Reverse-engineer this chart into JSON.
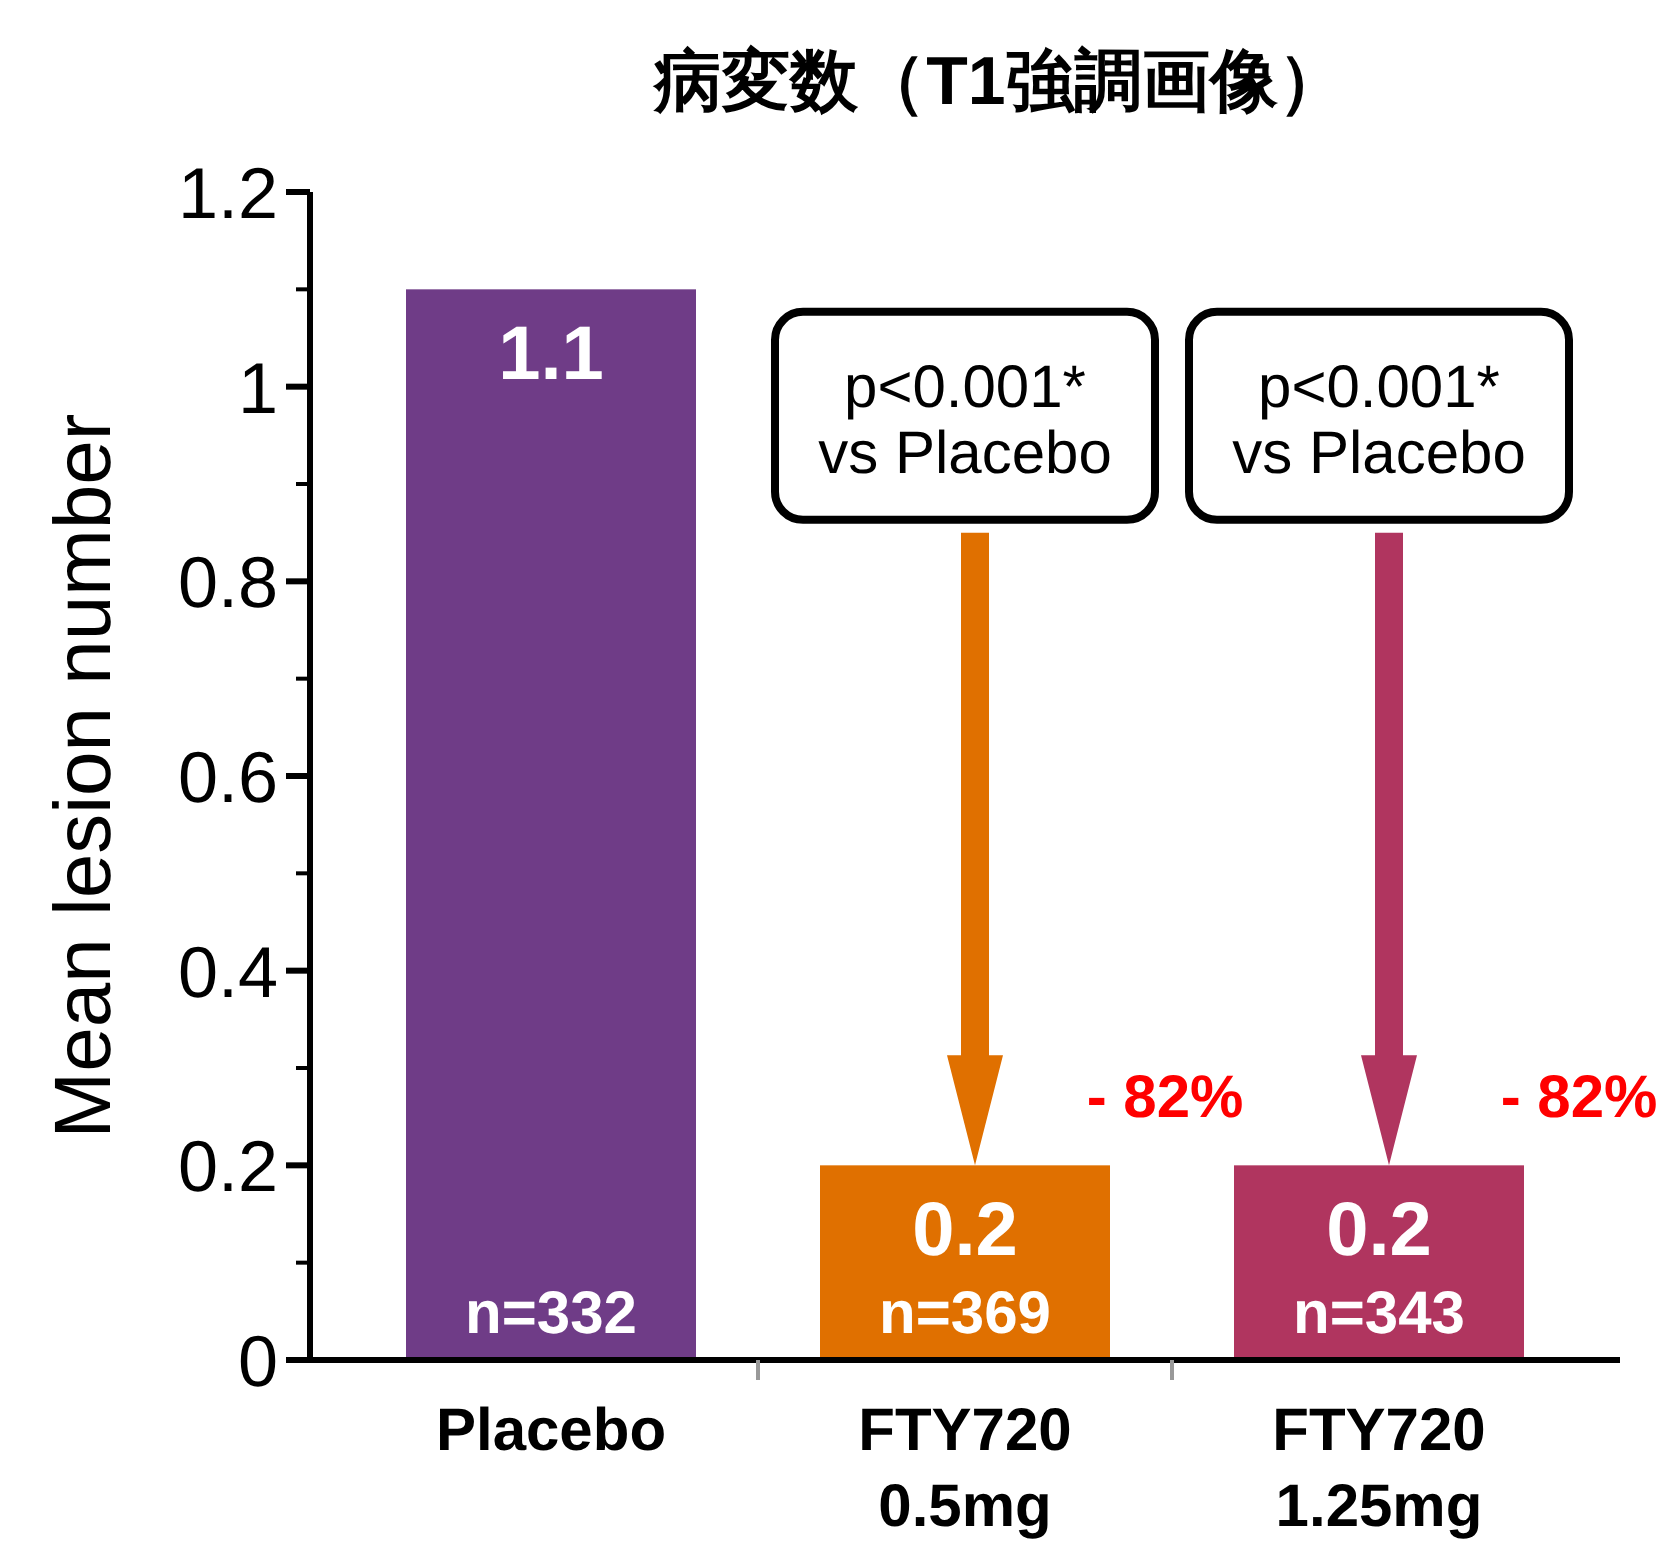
{
  "chart_data": {
    "type": "bar",
    "title": "病変数（T1強調画像）",
    "ylabel": "Mean lesion number",
    "categories": [
      "Placebo",
      "FTY720 0.5mg",
      "FTY720 1.25mg"
    ],
    "values": [
      1.1,
      0.2,
      0.2
    ],
    "colors": [
      "#6f3c87",
      "#e07000",
      "#b0355f"
    ],
    "data_labels": true,
    "ylim": [
      0,
      1.2
    ],
    "yticks": [
      0,
      0.2,
      0.4,
      0.6,
      0.8,
      1,
      1.2
    ],
    "grid": false,
    "annotations": [
      "n=332",
      "n=369",
      "n=343",
      "p<0.001*\nvs Placebo",
      "p<0.001*\nvs Placebo",
      "- 82%",
      "- 82%"
    ]
  }
}
